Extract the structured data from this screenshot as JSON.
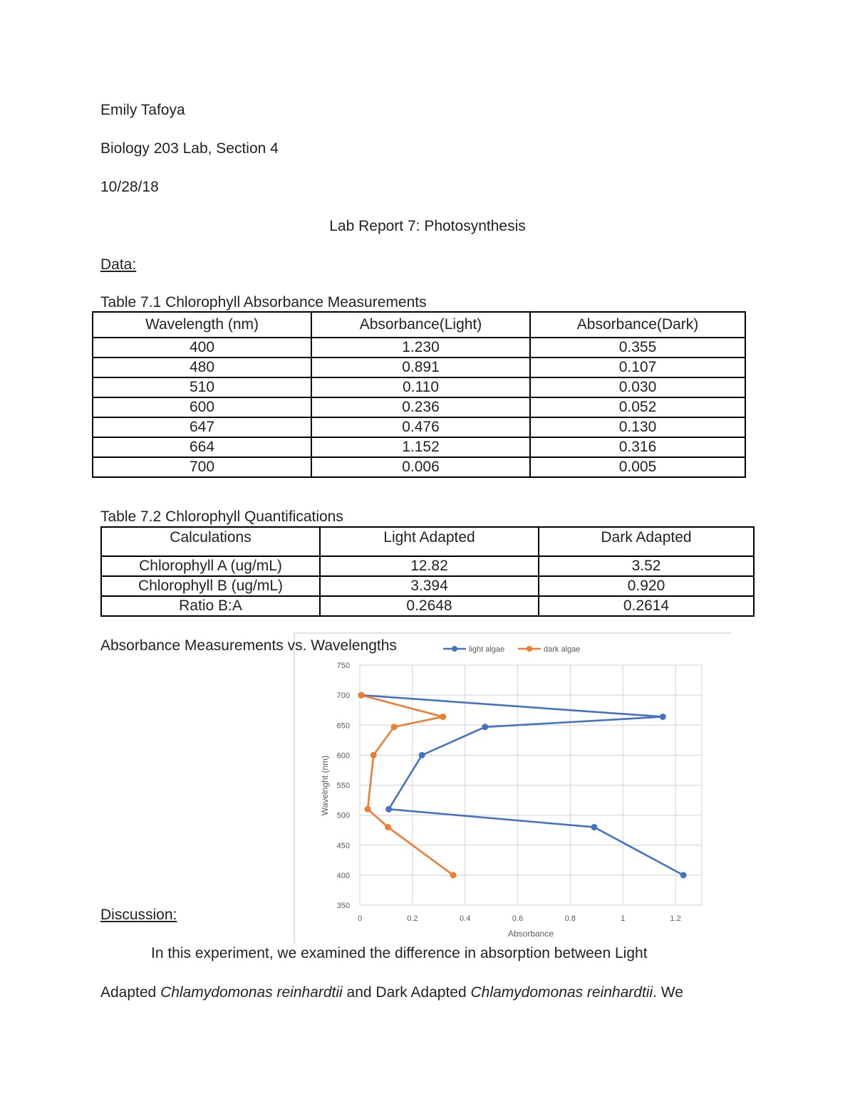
{
  "header": {
    "author": "Emily Tafoya",
    "course": "Biology 203 Lab, Section 4",
    "date": "10/28/18",
    "title": "Lab Report 7: Photosynthesis"
  },
  "sections": {
    "data_heading": "Data:",
    "discussion_heading": "Discussion:"
  },
  "table1": {
    "caption": "Table 7.1 Chlorophyll Absorbance Measurements",
    "headers": [
      "Wavelength (nm)",
      "Absorbance(Light)",
      "Absorbance(Dark)"
    ],
    "rows": [
      [
        "400",
        "1.230",
        "0.355"
      ],
      [
        "480",
        "0.891",
        "0.107"
      ],
      [
        "510",
        "0.110",
        "0.030"
      ],
      [
        "600",
        "0.236",
        "0.052"
      ],
      [
        "647",
        "0.476",
        "0.130"
      ],
      [
        "664",
        "1.152",
        "0.316"
      ],
      [
        "700",
        "0.006",
        "0.005"
      ]
    ]
  },
  "table2": {
    "caption": "Table 7.2 Chlorophyll Quantifications",
    "headers": [
      "Calculations",
      "Light Adapted",
      "Dark Adapted"
    ],
    "rows": [
      [
        "Chlorophyll A (ug/mL)",
        "12.82",
        "3.52"
      ],
      [
        "Chlorophyll B (ug/mL)",
        "3.394",
        "0.920"
      ],
      [
        "Ratio B:A",
        "0.2648",
        "0.2614"
      ]
    ]
  },
  "chart_title": "Absorbance Measurements vs. Wavelengths",
  "chart_data": {
    "type": "scatter",
    "title": "Absorbance Measurements vs. Wavelengths",
    "xlabel": "Absorbance",
    "ylabel": "Wavelnght (nm)",
    "xlim": [
      0,
      1.3
    ],
    "ylim": [
      350,
      750
    ],
    "xticks": [
      "0",
      "0.2",
      "0.4",
      "0.6",
      "0.8",
      "1",
      "1.2"
    ],
    "yticks": [
      "350",
      "400",
      "450",
      "500",
      "550",
      "600",
      "650",
      "700",
      "750"
    ],
    "grid": true,
    "legend_position": "top",
    "series": [
      {
        "name": "light algae",
        "color": "#4472C4",
        "points": [
          [
            1.23,
            400
          ],
          [
            0.891,
            480
          ],
          [
            0.11,
            510
          ],
          [
            0.236,
            600
          ],
          [
            0.476,
            647
          ],
          [
            1.152,
            664
          ],
          [
            0.006,
            700
          ]
        ]
      },
      {
        "name": "dark algae",
        "color": "#ED7D31",
        "points": [
          [
            0.355,
            400
          ],
          [
            0.107,
            480
          ],
          [
            0.03,
            510
          ],
          [
            0.052,
            600
          ],
          [
            0.13,
            647
          ],
          [
            0.316,
            664
          ],
          [
            0.005,
            700
          ]
        ]
      }
    ]
  },
  "discussion": {
    "line1": "In this experiment, we examined the difference in absorption between Light",
    "line2_parts": {
      "a": "Adapted ",
      "b": "Chlamydomonas reinhardtii",
      "c": " and Dark Adapted ",
      "d": "Chlamydomonas reinhardtii",
      "e": ". We"
    }
  }
}
